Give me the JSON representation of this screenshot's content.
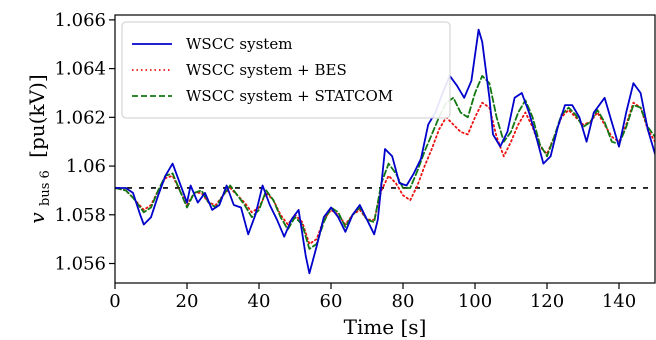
{
  "chart_data": {
    "type": "line",
    "xlabel": "Time [s]",
    "ylabel_base": "v",
    "ylabel_sub": "bus 6",
    "ylabel_units": "[pu(kV)]",
    "xlim": [
      0,
      150
    ],
    "ylim": [
      1.0552,
      1.0662
    ],
    "xticks": [
      0,
      20,
      40,
      60,
      80,
      100,
      120,
      140
    ],
    "xtick_labels": [
      "0",
      "20",
      "40",
      "60",
      "80",
      "100",
      "120",
      "140"
    ],
    "yticks": [
      1.056,
      1.058,
      1.06,
      1.062,
      1.064,
      1.066
    ],
    "ytick_labels": [
      "1.056",
      "1.058",
      "1.06",
      "1.062",
      "1.064",
      "1.066"
    ],
    "grid": false,
    "legend_position": "top-left",
    "series": [
      {
        "name": "WSCC system",
        "color": "#0000cc",
        "dash": "solid",
        "x": [
          0,
          3,
          5,
          7,
          8,
          10,
          12,
          14,
          16,
          18,
          20,
          21,
          23,
          25,
          27,
          29,
          31,
          33,
          35,
          37,
          39,
          41,
          43,
          45,
          47,
          49,
          51,
          53,
          54,
          56,
          58,
          60,
          62,
          64,
          66,
          68,
          70,
          72,
          73,
          75,
          77,
          79,
          81,
          83,
          85,
          87,
          89,
          91,
          93,
          95,
          97,
          99,
          101,
          102,
          104,
          105,
          107,
          109,
          111,
          113,
          115,
          117,
          119,
          121,
          123,
          125,
          127,
          129,
          131,
          133,
          134,
          136,
          138,
          140,
          142,
          144,
          146,
          148,
          150
        ],
        "y": [
          1.0591,
          1.0591,
          1.0589,
          1.058,
          1.0576,
          1.0579,
          1.0588,
          1.0596,
          1.0601,
          1.0593,
          1.0585,
          1.0592,
          1.0585,
          1.0589,
          1.0582,
          1.0584,
          1.0592,
          1.0584,
          1.0583,
          1.0572,
          1.058,
          1.0592,
          1.0584,
          1.0578,
          1.0571,
          1.0578,
          1.0582,
          1.0563,
          1.0556,
          1.0567,
          1.0579,
          1.0583,
          1.0579,
          1.0573,
          1.058,
          1.0584,
          1.0578,
          1.0572,
          1.0578,
          1.0607,
          1.0604,
          1.0593,
          1.0592,
          1.0597,
          1.0603,
          1.0617,
          1.0622,
          1.063,
          1.0637,
          1.0633,
          1.0628,
          1.0635,
          1.0656,
          1.0651,
          1.0628,
          1.0613,
          1.0608,
          1.0614,
          1.0628,
          1.063,
          1.0622,
          1.0612,
          1.0601,
          1.0604,
          1.0616,
          1.0625,
          1.0625,
          1.062,
          1.061,
          1.0622,
          1.0624,
          1.0628,
          1.0618,
          1.0608,
          1.0622,
          1.0634,
          1.063,
          1.0615,
          1.0605
        ]
      },
      {
        "name": "WSCC system + BES",
        "color": "#ee1111",
        "dash": "dotted",
        "x": [
          0,
          3,
          5,
          8,
          10,
          12,
          14,
          16,
          18,
          20,
          22,
          24,
          26,
          28,
          30,
          32,
          34,
          36,
          38,
          40,
          42,
          44,
          46,
          48,
          50,
          52,
          54,
          56,
          58,
          60,
          62,
          64,
          66,
          68,
          70,
          72,
          74,
          76,
          78,
          80,
          82,
          84,
          86,
          88,
          90,
          92,
          94,
          96,
          98,
          100,
          102,
          104,
          106,
          108,
          110,
          112,
          114,
          116,
          118,
          120,
          122,
          124,
          126,
          128,
          130,
          132,
          134,
          136,
          138,
          140,
          142,
          144,
          146,
          148,
          150
        ],
        "y": [
          1.0591,
          1.059,
          1.0587,
          1.0582,
          1.0584,
          1.059,
          1.0595,
          1.0596,
          1.059,
          1.0584,
          1.0589,
          1.0589,
          1.0585,
          1.0584,
          1.0588,
          1.0591,
          1.0588,
          1.0585,
          1.0581,
          1.0583,
          1.0589,
          1.0586,
          1.058,
          1.0576,
          1.058,
          1.0577,
          1.0568,
          1.057,
          1.0578,
          1.0582,
          1.058,
          1.0576,
          1.058,
          1.0582,
          1.0578,
          1.0578,
          1.059,
          1.0596,
          1.0593,
          1.0588,
          1.0586,
          1.0592,
          1.06,
          1.0607,
          1.0615,
          1.062,
          1.0617,
          1.0614,
          1.0613,
          1.062,
          1.0626,
          1.0624,
          1.0612,
          1.0604,
          1.061,
          1.0617,
          1.0622,
          1.0616,
          1.0608,
          1.0605,
          1.0612,
          1.062,
          1.0623,
          1.062,
          1.0617,
          1.0618,
          1.0622,
          1.0617,
          1.0612,
          1.061,
          1.0617,
          1.0626,
          1.0624,
          1.0615,
          1.061
        ]
      },
      {
        "name": "WSCC system + STATCOM",
        "color": "#117711",
        "dash": "dashed",
        "x": [
          0,
          3,
          5,
          8,
          10,
          12,
          14,
          16,
          18,
          20,
          22,
          24,
          26,
          28,
          30,
          32,
          34,
          36,
          38,
          40,
          42,
          44,
          46,
          48,
          50,
          52,
          54,
          56,
          58,
          60,
          62,
          64,
          66,
          68,
          70,
          72,
          74,
          76,
          78,
          80,
          82,
          84,
          86,
          88,
          90,
          92,
          94,
          96,
          98,
          100,
          102,
          104,
          106,
          108,
          110,
          112,
          114,
          116,
          118,
          120,
          122,
          124,
          126,
          128,
          130,
          132,
          134,
          136,
          138,
          140,
          142,
          144,
          146,
          148,
          150
        ],
        "y": [
          1.0591,
          1.059,
          1.0587,
          1.0581,
          1.0583,
          1.059,
          1.0596,
          1.0597,
          1.059,
          1.0583,
          1.0589,
          1.059,
          1.0585,
          1.0583,
          1.0588,
          1.0592,
          1.0588,
          1.0584,
          1.0579,
          1.0582,
          1.059,
          1.0586,
          1.0579,
          1.0574,
          1.0579,
          1.0576,
          1.0566,
          1.0568,
          1.0577,
          1.0583,
          1.0581,
          1.0575,
          1.058,
          1.0583,
          1.0578,
          1.0577,
          1.0593,
          1.0601,
          1.0597,
          1.0591,
          1.0591,
          1.0598,
          1.0606,
          1.0613,
          1.062,
          1.0626,
          1.0628,
          1.0622,
          1.062,
          1.063,
          1.0637,
          1.0634,
          1.062,
          1.061,
          1.0614,
          1.0622,
          1.0627,
          1.062,
          1.0609,
          1.0604,
          1.0612,
          1.0621,
          1.0624,
          1.0621,
          1.0616,
          1.0618,
          1.0623,
          1.0618,
          1.061,
          1.0609,
          1.0616,
          1.0625,
          1.0624,
          1.0616,
          1.0612
        ]
      }
    ],
    "reference_line": {
      "y": 1.0591,
      "color": "#000000",
      "dash": "dashed"
    }
  }
}
